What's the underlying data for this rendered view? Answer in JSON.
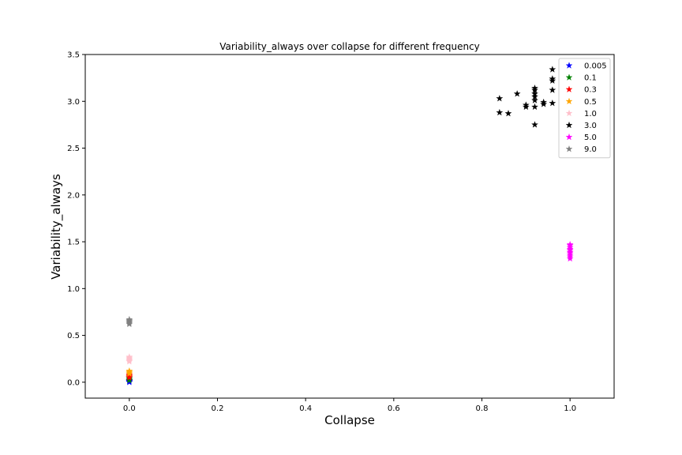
{
  "chart_data": {
    "type": "scatter",
    "title": "Variability_always over collapse for different frequency",
    "xlabel": "Collapse",
    "ylabel": "Variability_always",
    "xlim": [
      -0.1,
      1.1
    ],
    "ylim": [
      -0.17,
      3.5
    ],
    "xticks": [
      "0.0",
      "0.2",
      "0.4",
      "0.6",
      "0.8",
      "1.0"
    ],
    "xtick_values": [
      0.0,
      0.2,
      0.4,
      0.6,
      0.8,
      1.0
    ],
    "yticks": [
      "0.0",
      "0.5",
      "1.0",
      "1.5",
      "2.0",
      "2.5",
      "3.0",
      "3.5"
    ],
    "ytick_values": [
      0.0,
      0.5,
      1.0,
      1.5,
      2.0,
      2.5,
      3.0,
      3.5
    ],
    "marker": "star",
    "grid": false,
    "legend_position": "top-right",
    "series": [
      {
        "name": "0.005",
        "color": "#0000ff",
        "points": [
          [
            0,
            0.0
          ],
          [
            0,
            0.005
          ],
          [
            0,
            0.01
          ],
          [
            0,
            0.015
          ],
          [
            0,
            0.02
          ]
        ]
      },
      {
        "name": "0.1",
        "color": "#008000",
        "points": [
          [
            0,
            0.02
          ],
          [
            0,
            0.03
          ],
          [
            0,
            0.04
          ],
          [
            0,
            0.05
          ]
        ]
      },
      {
        "name": "0.3",
        "color": "#ff0000",
        "points": [
          [
            0,
            0.05
          ],
          [
            0,
            0.06
          ],
          [
            0,
            0.07
          ],
          [
            0,
            0.08
          ]
        ]
      },
      {
        "name": "0.5",
        "color": "#ffa500",
        "points": [
          [
            0,
            0.09
          ],
          [
            0,
            0.1
          ],
          [
            0,
            0.11
          ],
          [
            0,
            0.12
          ]
        ]
      },
      {
        "name": "1.0",
        "color": "#ffc0cb",
        "points": [
          [
            0,
            0.22
          ],
          [
            0,
            0.23
          ],
          [
            0,
            0.24
          ],
          [
            0,
            0.25
          ],
          [
            0,
            0.26
          ],
          [
            0,
            0.27
          ]
        ]
      },
      {
        "name": "3.0",
        "color": "#000000",
        "points": [
          [
            0.84,
            3.03
          ],
          [
            0.84,
            2.88
          ],
          [
            0.86,
            2.87
          ],
          [
            0.88,
            3.08
          ],
          [
            0.9,
            2.96
          ],
          [
            0.9,
            2.94
          ],
          [
            0.92,
            3.14
          ],
          [
            0.92,
            3.12
          ],
          [
            0.92,
            3.08
          ],
          [
            0.92,
            3.05
          ],
          [
            0.92,
            3.01
          ],
          [
            0.92,
            2.94
          ],
          [
            0.92,
            2.75
          ],
          [
            0.94,
            2.99
          ],
          [
            0.94,
            2.97
          ],
          [
            0.96,
            3.34
          ],
          [
            0.96,
            3.24
          ],
          [
            0.96,
            3.22
          ],
          [
            0.96,
            3.12
          ],
          [
            0.96,
            2.98
          ]
        ]
      },
      {
        "name": "5.0",
        "color": "#ff00ff",
        "points": [
          [
            1.0,
            1.32
          ],
          [
            1.0,
            1.34
          ],
          [
            1.0,
            1.36
          ],
          [
            1.0,
            1.38
          ],
          [
            1.0,
            1.39
          ],
          [
            1.0,
            1.41
          ],
          [
            1.0,
            1.42
          ],
          [
            1.0,
            1.44
          ],
          [
            1.0,
            1.46
          ],
          [
            1.0,
            1.47
          ]
        ]
      },
      {
        "name": "9.0",
        "color": "#808080",
        "points": [
          [
            0,
            0.62
          ],
          [
            0,
            0.63
          ],
          [
            0,
            0.64
          ],
          [
            0,
            0.65
          ],
          [
            0,
            0.66
          ],
          [
            0,
            0.67
          ]
        ]
      }
    ]
  }
}
